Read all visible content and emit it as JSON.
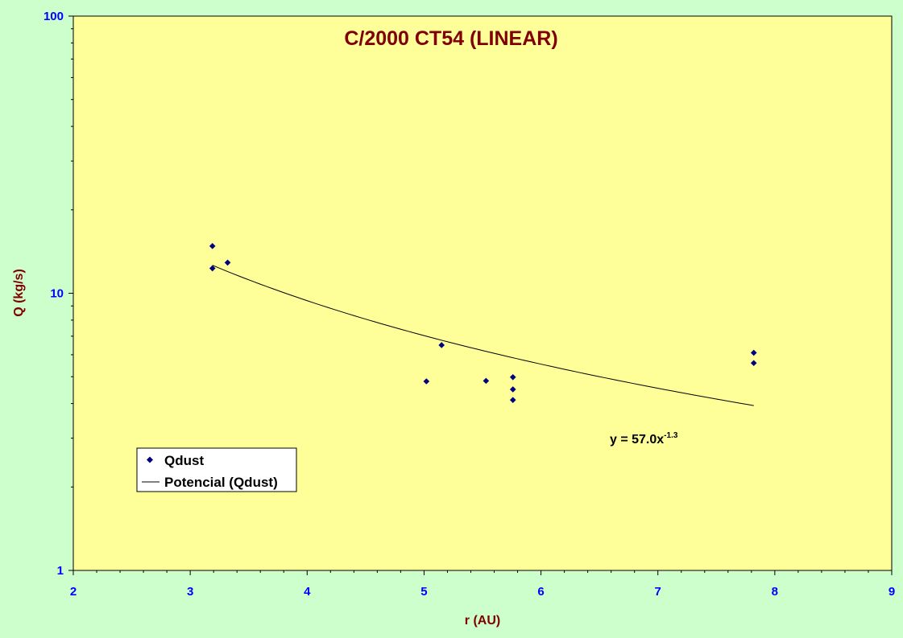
{
  "chart_data": {
    "type": "scatter",
    "title": "C/2000 CT54 (LINEAR)",
    "xlabel": "r (AU)",
    "ylabel": "Q (kg/s)",
    "xlim": [
      2,
      9
    ],
    "ylim": [
      1,
      100
    ],
    "y_scale": "log",
    "x_ticks": [
      2,
      3,
      4,
      5,
      6,
      7,
      8,
      9
    ],
    "y_ticks": [
      1,
      10,
      100
    ],
    "grid": false,
    "legend_placement": "bottom-left",
    "colors": {
      "plot_background": "#ffff99",
      "page_background": "#ccffcc",
      "marker": "#000080",
      "trendline": "#000000",
      "tick_labels": "#0000ff",
      "titles": "#800000"
    },
    "series": [
      {
        "name": "Qdust",
        "kind": "points",
        "x": [
          3.19,
          3.19,
          3.32,
          5.02,
          5.15,
          5.53,
          5.76,
          5.76,
          5.76,
          7.82,
          7.82
        ],
        "y": [
          14.8,
          12.3,
          12.9,
          4.81,
          6.5,
          4.83,
          4.98,
          4.5,
          4.12,
          6.1,
          5.6
        ]
      },
      {
        "name": "Potencial (Qdust)",
        "kind": "power-trendline",
        "coefficient": 57.0,
        "exponent": -1.3,
        "x_range": [
          3.19,
          7.82
        ]
      }
    ],
    "annotation": {
      "text": "y = 57.0x",
      "superscript": "-1.3",
      "x": 7.04,
      "y": 3.1
    }
  }
}
